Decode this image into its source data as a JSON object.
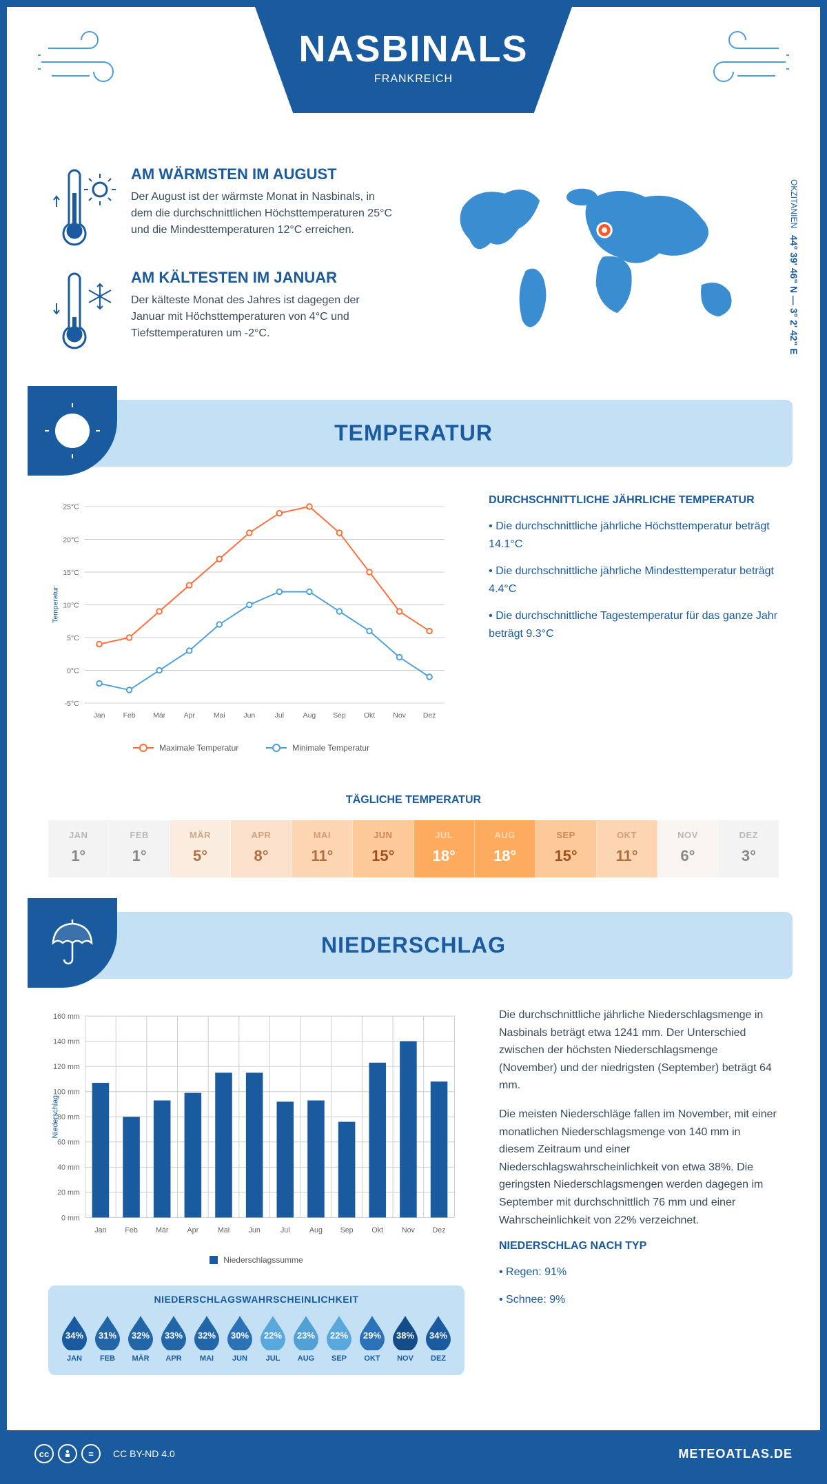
{
  "header": {
    "city": "NASBINALS",
    "country": "FRANKREICH"
  },
  "coords": {
    "region": "OKZITANIEN",
    "lat_lon": "44° 39' 46\" N — 3° 2' 42\" E"
  },
  "facts": {
    "warm": {
      "title": "AM WÄRMSTEN IM AUGUST",
      "text": "Der August ist der wärmste Monat in Nasbinals, in dem die durchschnittlichen Höchsttemperaturen 25°C und die Mindesttemperaturen 12°C erreichen."
    },
    "cold": {
      "title": "AM KÄLTESTEN IM JANUAR",
      "text": "Der kälteste Monat des Jahres ist dagegen der Januar mit Höchsttemperaturen von 4°C und Tiefsttemperaturen um -2°C."
    }
  },
  "sections": {
    "temp_title": "TEMPERATUR",
    "precip_title": "NIEDERSCHLAG"
  },
  "months": [
    "Jan",
    "Feb",
    "Mär",
    "Apr",
    "Mai",
    "Jun",
    "Jul",
    "Aug",
    "Sep",
    "Okt",
    "Nov",
    "Dez"
  ],
  "months_uc": [
    "JAN",
    "FEB",
    "MÄR",
    "APR",
    "MAI",
    "JUN",
    "JUL",
    "AUG",
    "SEP",
    "OKT",
    "NOV",
    "DEZ"
  ],
  "temp_chart": {
    "type": "line",
    "ylabel": "Temperatur",
    "ylim": [
      -5,
      25
    ],
    "ytick_step": 5,
    "max_series": {
      "values": [
        4,
        5,
        9,
        13,
        17,
        21,
        24,
        25,
        21,
        15,
        9,
        6
      ],
      "color": "#ff6b35",
      "label": "Maximale Temperatur",
      "marker": "circle",
      "line_width": 2
    },
    "min_series": {
      "values": [
        -2,
        -3,
        0,
        3,
        7,
        10,
        12,
        12,
        9,
        6,
        2,
        -1
      ],
      "color": "#4a9edb",
      "label": "Minimale Temperatur",
      "marker": "circle",
      "line_width": 2
    },
    "grid_color": "#cccccc",
    "background": "#ffffff"
  },
  "temp_text": {
    "heading": "DURCHSCHNITTLICHE JÄHRLICHE TEMPERATUR",
    "items": [
      "Die durchschnittliche jährliche Höchsttemperatur beträgt 14.1°C",
      "Die durchschnittliche jährliche Mindesttemperatur beträgt 4.4°C",
      "Die durchschnittliche Tagestemperatur für das ganze Jahr beträgt 9.3°C"
    ]
  },
  "daily_temp": {
    "title": "TÄGLICHE TEMPERATUR",
    "values": [
      "1°",
      "1°",
      "5°",
      "8°",
      "11°",
      "15°",
      "18°",
      "18°",
      "15°",
      "11°",
      "6°",
      "3°"
    ],
    "bg_colors": [
      "#f3f3f3",
      "#f3f3f3",
      "#fbece0",
      "#fbe1cc",
      "#fcd6b3",
      "#fdc999",
      "#fdab5e",
      "#fdab5e",
      "#fdc999",
      "#fcd6b3",
      "#f8f4f0",
      "#f3f3f3"
    ],
    "text_colors": [
      "#888888",
      "#888888",
      "#b07040",
      "#b07040",
      "#b07040",
      "#a05020",
      "#ffffff",
      "#ffffff",
      "#a05020",
      "#b07040",
      "#888888",
      "#888888"
    ]
  },
  "precip_chart": {
    "type": "bar",
    "ylabel": "Niederschlag",
    "ylim": [
      0,
      160
    ],
    "ytick_step": 20,
    "values": [
      107,
      80,
      93,
      99,
      115,
      115,
      92,
      93,
      76,
      123,
      140,
      108
    ],
    "bar_color": "#1a5a9e",
    "grid_color": "#cccccc",
    "legend": "Niederschlagssumme"
  },
  "precip_text": {
    "para1": "Die durchschnittliche jährliche Niederschlagsmenge in Nasbinals beträgt etwa 1241 mm. Der Unterschied zwischen der höchsten Niederschlagsmenge (November) und der niedrigsten (September) beträgt 64 mm.",
    "para2": "Die meisten Niederschläge fallen im November, mit einer monatlichen Niederschlagsmenge von 140 mm in diesem Zeitraum und einer Niederschlagswahrscheinlichkeit von etwa 38%. Die geringsten Niederschlagsmengen werden dagegen im September mit durchschnittlich 76 mm und einer Wahrscheinlichkeit von 22% verzeichnet.",
    "type_heading": "NIEDERSCHLAG NACH TYP",
    "type_items": [
      "Regen: 91%",
      "Schnee: 9%"
    ]
  },
  "precip_prob": {
    "title": "NIEDERSCHLAGSWAHRSCHEINLICHKEIT",
    "values": [
      "34%",
      "31%",
      "32%",
      "33%",
      "32%",
      "30%",
      "22%",
      "23%",
      "22%",
      "29%",
      "38%",
      "34%"
    ],
    "colors": [
      "#1a5a9e",
      "#2266a8",
      "#2266a8",
      "#2266a8",
      "#2266a8",
      "#2a72b5",
      "#5aa8db",
      "#52a0d4",
      "#5aa8db",
      "#2a72b5",
      "#144c88",
      "#1a5a9e"
    ]
  },
  "footer": {
    "license": "CC BY-ND 4.0",
    "site": "METEOATLAS.DE"
  },
  "colors": {
    "primary": "#1a5a9e",
    "accent_blue": "#4a9edb",
    "accent_orange": "#ff6b35",
    "light_blue": "#c4e0f5"
  }
}
